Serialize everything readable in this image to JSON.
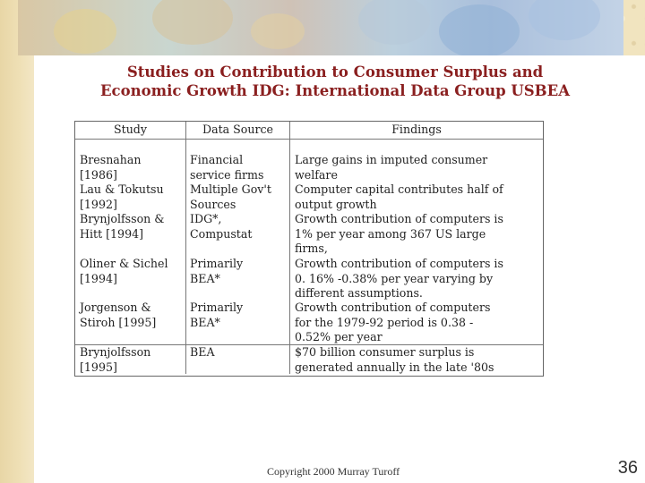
{
  "slide": {
    "title_line1": "Studies on Contribution to Consumer Surplus and",
    "title_line2": "Economic Growth IDG: International Data Group USBEA",
    "footer": "Copyright 2000 Murray Turoff",
    "page_number": "36"
  },
  "table": {
    "headers": [
      "Study",
      "Data Source",
      "Findings"
    ],
    "rows": [
      {
        "study": "Bresnahan\n[1986]",
        "source": "Financial\nservice firms",
        "findings": "Large gains in imputed consumer\nwelfare"
      },
      {
        "study": "Lau & Tokutsu\n[1992]",
        "source": "Multiple Gov't\nSources",
        "findings": "Computer capital contributes half of\noutput growth"
      },
      {
        "study": "Brynjolfsson &\nHitt [1994]",
        "source": "IDG*,\nCompustat",
        "findings": "Growth contribution of computers is\n1% per year among 367 US large\nfirms,"
      },
      {
        "study": "Oliner & Sichel\n[1994]",
        "source": "Primarily\nBEA*",
        "findings": "Growth contribution of computers is\n0. 16% -0.38% per year varying by\ndifferent assumptions."
      },
      {
        "study": "Jorgenson &\nStiroh [1995]",
        "source": "Primarily\nBEA*",
        "findings": "Growth contribution of computers\nfor the 1979-92 period is 0.38 -\n0.52% per year"
      },
      {
        "study": "Brynjolfsson\n[1995]",
        "source": "BEA",
        "findings": "$70 billion consumer surplus is\ngenerated annually in the late '80s"
      }
    ]
  }
}
